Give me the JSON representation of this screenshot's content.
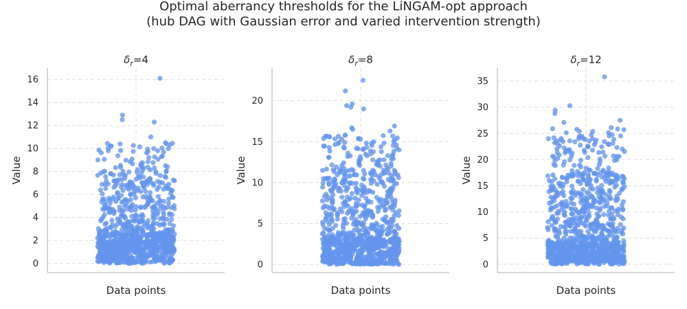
{
  "figure": {
    "title_line1": "Optimal aberrancy thresholds for the LiNGAM-opt approach",
    "title_line2": "(hub DAG with Gaussian error and varied intervention strength)"
  },
  "colors": {
    "points": "#6495ED",
    "spine": "#bfbfbf",
    "grid": "#dedede",
    "text": "#262626"
  },
  "chart_data": [
    {
      "type": "scatter",
      "title_symbol": "δ",
      "title_subscript": "r",
      "title_value": "=4",
      "xlabel": "Data points",
      "ylabel": "Value",
      "ylim": [
        -0.8,
        17.0
      ],
      "yticks": [
        0,
        2,
        4,
        6,
        8,
        10,
        12,
        14,
        16
      ],
      "grid": true,
      "n_points": 1000,
      "distribution": {
        "dense_max": 2.6,
        "mid_max": 7.0,
        "tail_max": 10.5,
        "dense_frac": 0.6,
        "mid_frac": 0.3
      },
      "outliers": [
        16.1,
        12.9,
        12.5,
        12.3,
        11.0,
        10.5,
        10.2
      ],
      "seed": 11
    },
    {
      "type": "scatter",
      "title_symbol": "δ",
      "title_subscript": "r",
      "title_value": "=8",
      "xlabel": "Data points",
      "ylabel": "Value",
      "ylim": [
        -1.0,
        24.0
      ],
      "yticks": [
        0,
        5,
        10,
        15,
        20
      ],
      "grid": true,
      "n_points": 1000,
      "distribution": {
        "dense_max": 3.0,
        "mid_max": 11.0,
        "tail_max": 16.0,
        "dense_frac": 0.5,
        "mid_frac": 0.38
      },
      "outliers": [
        22.5,
        21.2,
        19.6,
        19.4,
        19.2,
        19.0,
        16.9,
        16.7,
        16.5,
        16.3
      ],
      "seed": 23
    },
    {
      "type": "scatter",
      "title_symbol": "δ",
      "title_subscript": "r",
      "title_value": "=12",
      "xlabel": "Data points",
      "ylabel": "Value",
      "ylim": [
        -1.6,
        37.5
      ],
      "yticks": [
        0,
        5,
        10,
        15,
        20,
        25,
        30,
        35
      ],
      "grid": true,
      "n_points": 1000,
      "distribution": {
        "dense_max": 4.0,
        "mid_max": 17.0,
        "tail_max": 26.0,
        "dense_frac": 0.45,
        "mid_frac": 0.42
      },
      "outliers": [
        35.8,
        30.3,
        29.4,
        28.8,
        27.5,
        27.1,
        26.1,
        25.4,
        24.0,
        24.0
      ],
      "seed": 37
    }
  ]
}
